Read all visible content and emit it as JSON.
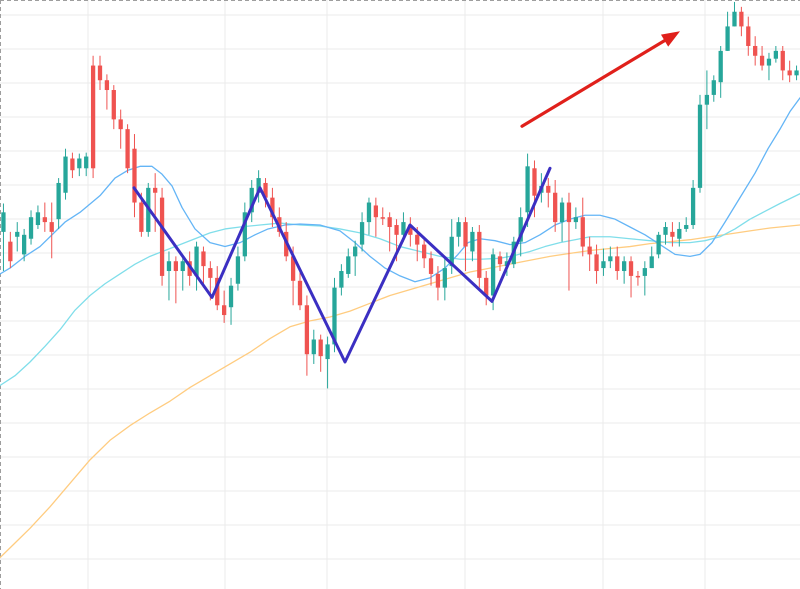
{
  "chart_data": {
    "type": "candlestick",
    "grid": true,
    "colors": {
      "up": "#26a69a",
      "down": "#ef5350",
      "pattern_line": "#3b2fc2",
      "arrow": "#e0201b",
      "ma_fast": "#64b5f6",
      "ma_mid": "#80deea",
      "ma_slow": "#ffcc80",
      "grid": "#ebebeb"
    },
    "candles": [
      [
        225,
        205,
        196,
        265
      ],
      [
        235,
        255,
        225,
        262
      ],
      [
        230,
        225,
        215,
        245
      ],
      [
        248,
        228,
        222,
        255
      ],
      [
        232,
        210,
        203,
        238
      ],
      [
        218,
        205,
        198,
        222
      ],
      [
        210,
        215,
        195,
        225
      ],
      [
        215,
        225,
        195,
        252
      ],
      [
        212,
        175,
        170,
        222
      ],
      [
        185,
        148,
        140,
        192
      ],
      [
        150,
        162,
        144,
        170
      ],
      [
        160,
        150,
        145,
        168
      ],
      [
        160,
        148,
        144,
        168
      ],
      [
        55,
        160,
        45,
        170
      ],
      [
        55,
        70,
        45,
        80
      ],
      [
        70,
        80,
        64,
        100
      ],
      [
        80,
        110,
        75,
        120
      ],
      [
        110,
        120,
        100,
        140
      ],
      [
        120,
        160,
        115,
        165
      ],
      [
        140,
        195,
        125,
        210
      ],
      [
        195,
        225,
        185,
        230
      ],
      [
        225,
        180,
        175,
        230
      ],
      [
        180,
        185,
        165,
        225
      ],
      [
        190,
        270,
        180,
        280
      ],
      [
        265,
        255,
        245,
        295
      ],
      [
        255,
        265,
        250,
        298
      ],
      [
        265,
        255,
        250,
        285
      ],
      [
        255,
        270,
        245,
        280
      ],
      [
        270,
        240,
        235,
        285
      ],
      [
        245,
        260,
        240,
        282
      ],
      [
        262,
        272,
        255,
        295
      ],
      [
        272,
        300,
        260,
        305
      ],
      [
        300,
        310,
        285,
        318
      ],
      [
        302,
        280,
        272,
        320
      ],
      [
        278,
        250,
        240,
        285
      ],
      [
        250,
        205,
        195,
        255
      ],
      [
        205,
        180,
        172,
        215
      ],
      [
        185,
        170,
        162,
        195
      ],
      [
        175,
        190,
        170,
        200
      ],
      [
        190,
        210,
        180,
        220
      ],
      [
        210,
        225,
        200,
        230
      ],
      [
        225,
        250,
        215,
        255
      ],
      [
        250,
        275,
        240,
        300
      ],
      [
        275,
        300,
        265,
        305
      ],
      [
        300,
        350,
        290,
        372
      ],
      [
        350,
        335,
        325,
        360
      ],
      [
        335,
        352,
        330,
        368
      ],
      [
        355,
        340,
        332,
        385
      ],
      [
        340,
        282,
        272,
        348
      ],
      [
        282,
        265,
        258,
        290
      ],
      [
        268,
        250,
        242,
        272
      ],
      [
        250,
        240,
        234,
        270
      ],
      [
        238,
        215,
        205,
        245
      ],
      [
        215,
        195,
        190,
        228
      ],
      [
        198,
        210,
        190,
        230
      ],
      [
        210,
        210,
        200,
        218
      ],
      [
        210,
        220,
        205,
        245
      ],
      [
        218,
        228,
        212,
        255
      ],
      [
        228,
        215,
        205,
        235
      ],
      [
        218,
        228,
        210,
        240
      ],
      [
        228,
        238,
        220,
        255
      ],
      [
        238,
        252,
        230,
        262
      ],
      [
        252,
        268,
        245,
        280
      ],
      [
        268,
        282,
        260,
        295
      ],
      [
        282,
        262,
        250,
        295
      ],
      [
        260,
        230,
        212,
        268
      ],
      [
        230,
        215,
        210,
        240
      ],
      [
        215,
        240,
        210,
        265
      ],
      [
        245,
        225,
        220,
        255
      ],
      [
        225,
        272,
        218,
        282
      ],
      [
        272,
        290,
        265,
        300
      ],
      [
        290,
        248,
        242,
        305
      ],
      [
        250,
        258,
        245,
        265
      ],
      [
        260,
        255,
        246,
        270
      ],
      [
        258,
        235,
        230,
        262
      ],
      [
        235,
        210,
        200,
        250
      ],
      [
        205,
        158,
        145,
        220
      ],
      [
        160,
        188,
        152,
        210
      ],
      [
        185,
        178,
        165,
        195
      ],
      [
        178,
        185,
        170,
        200
      ],
      [
        185,
        215,
        172,
        225
      ],
      [
        215,
        195,
        190,
        235
      ],
      [
        195,
        215,
        185,
        285
      ],
      [
        215,
        210,
        200,
        222
      ],
      [
        210,
        240,
        190,
        250
      ],
      [
        240,
        248,
        230,
        265
      ],
      [
        248,
        265,
        238,
        278
      ],
      [
        262,
        255,
        242,
        270
      ],
      [
        255,
        250,
        240,
        262
      ],
      [
        250,
        265,
        240,
        274
      ],
      [
        265,
        255,
        250,
        278
      ],
      [
        255,
        270,
        250,
        292
      ],
      [
        270,
        270,
        265,
        280
      ],
      [
        270,
        262,
        255,
        290
      ],
      [
        262,
        250,
        240,
        262
      ],
      [
        248,
        228,
        225,
        252
      ],
      [
        228,
        220,
        215,
        238
      ],
      [
        225,
        230,
        215,
        240
      ],
      [
        232,
        222,
        215,
        240
      ],
      [
        222,
        218,
        210,
        225
      ],
      [
        218,
        180,
        172,
        222
      ],
      [
        180,
        95,
        85,
        185
      ],
      [
        95,
        85,
        60,
        120
      ],
      [
        85,
        70,
        65,
        92
      ],
      [
        72,
        40,
        35,
        88
      ],
      [
        40,
        15,
        0,
        40
      ],
      [
        15,
        0,
        -10,
        15
      ],
      [
        0,
        15,
        -5,
        25
      ],
      [
        15,
        35,
        5,
        45
      ],
      [
        35,
        45,
        25,
        55
      ],
      [
        45,
        55,
        35,
        60
      ],
      [
        55,
        48,
        42,
        70
      ],
      [
        48,
        40,
        35,
        52
      ],
      [
        40,
        60,
        35,
        70
      ],
      [
        60,
        65,
        50,
        72
      ],
      [
        65,
        60,
        55,
        70
      ]
    ],
    "ma_fast": [
      [
        0,
        268
      ],
      [
        10,
        262
      ],
      [
        25,
        250
      ],
      [
        40,
        240
      ],
      [
        55,
        225
      ],
      [
        65,
        215
      ],
      [
        80,
        205
      ],
      [
        100,
        188
      ],
      [
        115,
        170
      ],
      [
        128,
        162
      ],
      [
        140,
        158
      ],
      [
        152,
        158
      ],
      [
        162,
        166
      ],
      [
        172,
        178
      ],
      [
        182,
        200
      ],
      [
        195,
        222
      ],
      [
        210,
        236
      ],
      [
        225,
        240
      ],
      [
        240,
        236
      ],
      [
        255,
        228
      ],
      [
        268,
        222
      ],
      [
        285,
        218
      ],
      [
        300,
        217
      ],
      [
        320,
        218
      ],
      [
        340,
        224
      ],
      [
        355,
        236
      ],
      [
        370,
        250
      ],
      [
        385,
        262
      ],
      [
        400,
        270
      ],
      [
        415,
        276
      ],
      [
        430,
        272
      ],
      [
        445,
        262
      ],
      [
        458,
        248
      ],
      [
        468,
        236
      ],
      [
        480,
        232
      ],
      [
        495,
        234
      ],
      [
        510,
        238
      ],
      [
        525,
        236
      ],
      [
        540,
        228
      ],
      [
        555,
        218
      ],
      [
        570,
        212
      ],
      [
        585,
        208
      ],
      [
        600,
        208
      ],
      [
        615,
        212
      ],
      [
        630,
        220
      ],
      [
        645,
        228
      ],
      [
        660,
        238
      ],
      [
        675,
        248
      ],
      [
        690,
        250
      ],
      [
        700,
        248
      ],
      [
        712,
        236
      ],
      [
        725,
        215
      ],
      [
        740,
        190
      ],
      [
        755,
        165
      ],
      [
        768,
        140
      ],
      [
        780,
        120
      ],
      [
        790,
        102
      ],
      [
        800,
        88
      ]
    ],
    "ma_mid": [
      [
        0,
        382
      ],
      [
        15,
        372
      ],
      [
        30,
        358
      ],
      [
        45,
        342
      ],
      [
        60,
        325
      ],
      [
        75,
        305
      ],
      [
        90,
        290
      ],
      [
        105,
        278
      ],
      [
        120,
        268
      ],
      [
        135,
        258
      ],
      [
        150,
        250
      ],
      [
        165,
        244
      ],
      [
        180,
        238
      ],
      [
        195,
        232
      ],
      [
        210,
        226
      ],
      [
        225,
        222
      ],
      [
        240,
        220
      ],
      [
        260,
        218
      ],
      [
        280,
        216
      ],
      [
        300,
        218
      ],
      [
        320,
        219
      ],
      [
        340,
        222
      ],
      [
        360,
        226
      ],
      [
        380,
        232
      ],
      [
        400,
        240
      ],
      [
        420,
        245
      ],
      [
        440,
        250
      ],
      [
        460,
        253
      ],
      [
        480,
        253
      ],
      [
        500,
        252
      ],
      [
        515,
        249
      ],
      [
        530,
        245
      ],
      [
        545,
        240
      ],
      [
        560,
        236
      ],
      [
        575,
        233
      ],
      [
        590,
        230
      ],
      [
        610,
        230
      ],
      [
        630,
        232
      ],
      [
        650,
        234
      ],
      [
        670,
        236
      ],
      [
        690,
        236
      ],
      [
        705,
        234
      ],
      [
        720,
        230
      ],
      [
        735,
        222
      ],
      [
        750,
        212
      ],
      [
        765,
        204
      ],
      [
        780,
        196
      ],
      [
        800,
        186
      ]
    ],
    "ma_slow": [
      [
        0,
        558
      ],
      [
        15,
        543
      ],
      [
        30,
        528
      ],
      [
        50,
        506
      ],
      [
        70,
        482
      ],
      [
        90,
        458
      ],
      [
        110,
        438
      ],
      [
        130,
        423
      ],
      [
        150,
        410
      ],
      [
        170,
        398
      ],
      [
        190,
        384
      ],
      [
        210,
        372
      ],
      [
        230,
        360
      ],
      [
        250,
        348
      ],
      [
        270,
        334
      ],
      [
        290,
        322
      ],
      [
        310,
        316
      ],
      [
        330,
        312
      ],
      [
        350,
        306
      ],
      [
        370,
        298
      ],
      [
        390,
        290
      ],
      [
        410,
        284
      ],
      [
        430,
        278
      ],
      [
        450,
        272
      ],
      [
        470,
        266
      ],
      [
        490,
        262
      ],
      [
        510,
        258
      ],
      [
        530,
        254
      ],
      [
        550,
        250
      ],
      [
        570,
        247
      ],
      [
        590,
        244
      ],
      [
        610,
        242
      ],
      [
        630,
        240
      ],
      [
        650,
        237
      ],
      [
        670,
        235
      ],
      [
        690,
        233
      ],
      [
        710,
        230
      ],
      [
        730,
        227
      ],
      [
        750,
        224
      ],
      [
        770,
        221
      ],
      [
        800,
        218
      ]
    ],
    "pattern_line": [
      [
        134,
        180
      ],
      [
        212,
        292
      ],
      [
        260,
        180
      ],
      [
        345,
        358
      ],
      [
        410,
        218
      ],
      [
        492,
        296
      ],
      [
        550,
        160
      ]
    ],
    "arrow": [
      [
        522,
        117
      ],
      [
        680,
        20
      ]
    ],
    "y_range": [
      -12,
      590
    ]
  }
}
